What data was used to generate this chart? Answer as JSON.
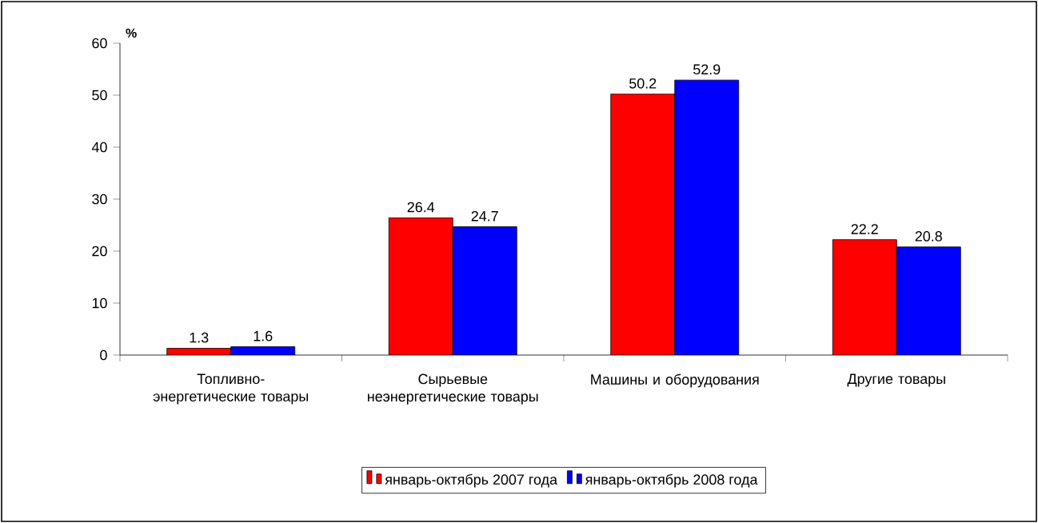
{
  "chart_data": {
    "type": "bar",
    "ylabel": "%",
    "categories": [
      "Топливно-энергетические товары",
      "Сырьевые неэнергетические товары",
      "Машины и оборудования",
      "Другие товары"
    ],
    "series": [
      {
        "name": "январь-октябрь 2007 года",
        "color": "#ff0000",
        "values": [
          1.3,
          26.4,
          50.2,
          22.2
        ]
      },
      {
        "name": "январь-октябрь 2008 года",
        "color": "#0000ff",
        "values": [
          1.6,
          24.7,
          52.9,
          20.8
        ]
      }
    ],
    "ylim": [
      0,
      60
    ],
    "yticks": [
      0,
      10,
      20,
      30,
      40,
      50,
      60
    ],
    "data_labels": true,
    "legend": "bottom",
    "grid": false
  }
}
